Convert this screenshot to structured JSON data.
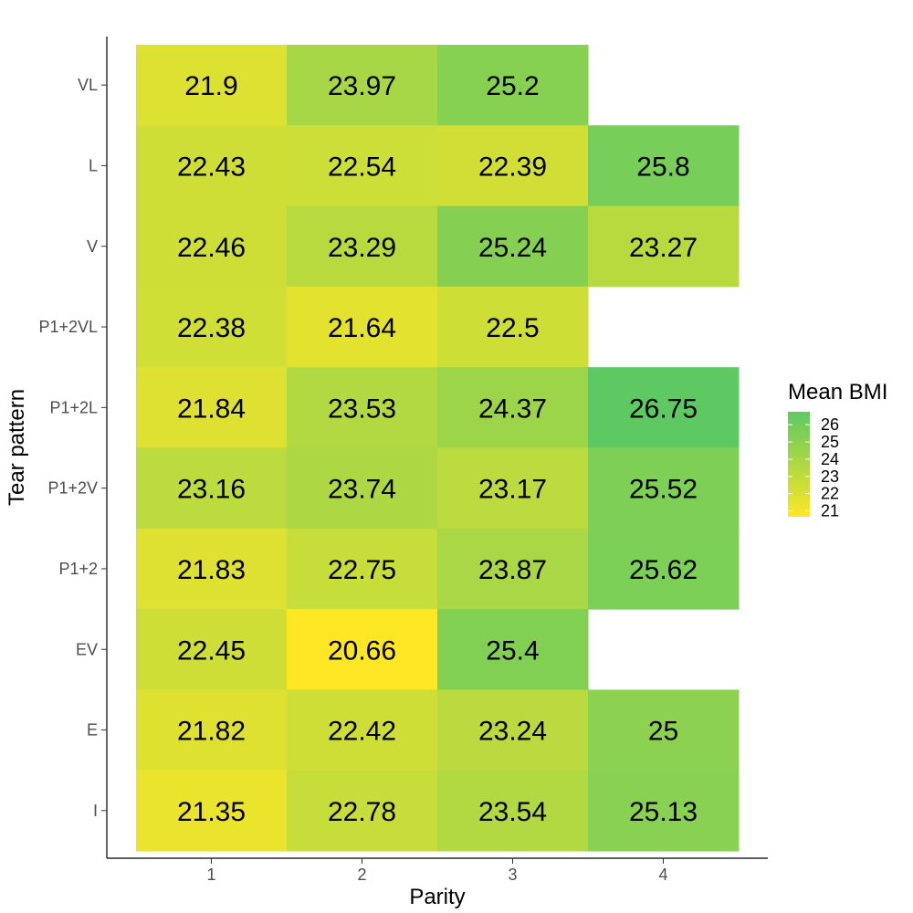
{
  "chart_data": {
    "type": "heatmap",
    "title": "",
    "xlabel": "Parity",
    "ylabel": "Tear pattern",
    "x_categories": [
      "1",
      "2",
      "3",
      "4"
    ],
    "y_categories": [
      "I",
      "E",
      "EV",
      "P1+2",
      "P1+2V",
      "P1+2L",
      "P1+2VL",
      "V",
      "L",
      "VL"
    ],
    "cells": [
      {
        "x": "1",
        "y": "VL",
        "value": 21.9,
        "label": "21.9"
      },
      {
        "x": "2",
        "y": "VL",
        "value": 23.97,
        "label": "23.97"
      },
      {
        "x": "3",
        "y": "VL",
        "value": 25.2,
        "label": "25.2"
      },
      {
        "x": "1",
        "y": "L",
        "value": 22.43,
        "label": "22.43"
      },
      {
        "x": "2",
        "y": "L",
        "value": 22.54,
        "label": "22.54"
      },
      {
        "x": "3",
        "y": "L",
        "value": 22.39,
        "label": "22.39"
      },
      {
        "x": "4",
        "y": "L",
        "value": 25.8,
        "label": "25.8"
      },
      {
        "x": "1",
        "y": "V",
        "value": 22.46,
        "label": "22.46"
      },
      {
        "x": "2",
        "y": "V",
        "value": 23.29,
        "label": "23.29"
      },
      {
        "x": "3",
        "y": "V",
        "value": 25.24,
        "label": "25.24"
      },
      {
        "x": "4",
        "y": "V",
        "value": 23.27,
        "label": "23.27"
      },
      {
        "x": "1",
        "y": "P1+2VL",
        "value": 22.38,
        "label": "22.38"
      },
      {
        "x": "2",
        "y": "P1+2VL",
        "value": 21.64,
        "label": "21.64"
      },
      {
        "x": "3",
        "y": "P1+2VL",
        "value": 22.5,
        "label": "22.5"
      },
      {
        "x": "1",
        "y": "P1+2L",
        "value": 21.84,
        "label": "21.84"
      },
      {
        "x": "2",
        "y": "P1+2L",
        "value": 23.53,
        "label": "23.53"
      },
      {
        "x": "3",
        "y": "P1+2L",
        "value": 24.37,
        "label": "24.37"
      },
      {
        "x": "4",
        "y": "P1+2L",
        "value": 26.75,
        "label": "26.75"
      },
      {
        "x": "1",
        "y": "P1+2V",
        "value": 23.16,
        "label": "23.16"
      },
      {
        "x": "2",
        "y": "P1+2V",
        "value": 23.74,
        "label": "23.74"
      },
      {
        "x": "3",
        "y": "P1+2V",
        "value": 23.17,
        "label": "23.17"
      },
      {
        "x": "4",
        "y": "P1+2V",
        "value": 25.52,
        "label": "25.52"
      },
      {
        "x": "1",
        "y": "P1+2",
        "value": 21.83,
        "label": "21.83"
      },
      {
        "x": "2",
        "y": "P1+2",
        "value": 22.75,
        "label": "22.75"
      },
      {
        "x": "3",
        "y": "P1+2",
        "value": 23.87,
        "label": "23.87"
      },
      {
        "x": "4",
        "y": "P1+2",
        "value": 25.62,
        "label": "25.62"
      },
      {
        "x": "1",
        "y": "EV",
        "value": 22.45,
        "label": "22.45"
      },
      {
        "x": "2",
        "y": "EV",
        "value": 20.66,
        "label": "20.66"
      },
      {
        "x": "3",
        "y": "EV",
        "value": 25.4,
        "label": "25.4"
      },
      {
        "x": "1",
        "y": "E",
        "value": 21.82,
        "label": "21.82"
      },
      {
        "x": "2",
        "y": "E",
        "value": 22.42,
        "label": "22.42"
      },
      {
        "x": "3",
        "y": "E",
        "value": 23.24,
        "label": "23.24"
      },
      {
        "x": "4",
        "y": "E",
        "value": 25,
        "label": "25"
      },
      {
        "x": "1",
        "y": "I",
        "value": 21.35,
        "label": "21.35"
      },
      {
        "x": "2",
        "y": "I",
        "value": 22.78,
        "label": "22.78"
      },
      {
        "x": "3",
        "y": "I",
        "value": 23.54,
        "label": "23.54"
      },
      {
        "x": "4",
        "y": "I",
        "value": 25.13,
        "label": "25.13"
      }
    ],
    "color_scale": {
      "title": "Mean BMI",
      "min": 20.66,
      "max": 26.75,
      "low_color": "#FDE725",
      "high_color": "#5EC962",
      "ticks": [
        21,
        22,
        23,
        24,
        25,
        26
      ]
    },
    "legend_position": "right",
    "grid": false
  }
}
